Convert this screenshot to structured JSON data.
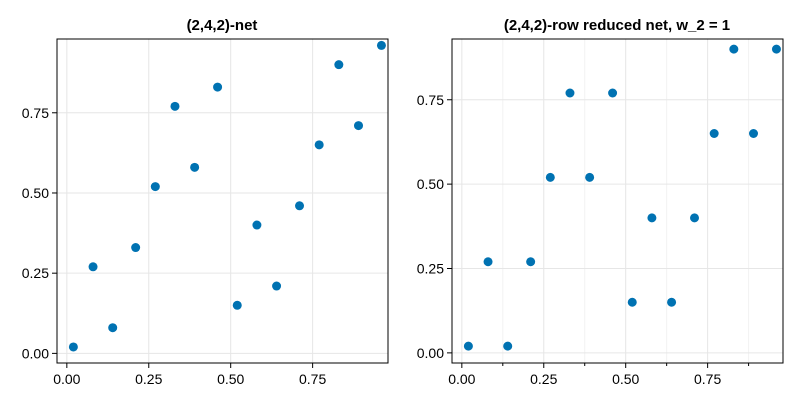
{
  "chart_data": [
    {
      "type": "scatter",
      "title": "(2,4,2)-net",
      "xlabel": "",
      "ylabel": "",
      "xlim": [
        -0.03,
        0.98
      ],
      "ylim": [
        -0.03,
        0.98
      ],
      "xticks": [
        0.0,
        0.25,
        0.5,
        0.75
      ],
      "xtick_labels": [
        "0.00",
        "0.25",
        "0.50",
        "0.75"
      ],
      "yticks": [
        0.0,
        0.25,
        0.5,
        0.75
      ],
      "ytick_labels": [
        "0.00",
        "0.25",
        "0.50",
        "0.75"
      ],
      "minor_xgrid": false,
      "grid": true,
      "marker_color": "#0072b2",
      "points": [
        {
          "x": 0.02,
          "y": 0.02
        },
        {
          "x": 0.08,
          "y": 0.27
        },
        {
          "x": 0.14,
          "y": 0.08
        },
        {
          "x": 0.21,
          "y": 0.33
        },
        {
          "x": 0.27,
          "y": 0.52
        },
        {
          "x": 0.33,
          "y": 0.77
        },
        {
          "x": 0.39,
          "y": 0.58
        },
        {
          "x": 0.46,
          "y": 0.83
        },
        {
          "x": 0.52,
          "y": 0.15
        },
        {
          "x": 0.58,
          "y": 0.4
        },
        {
          "x": 0.64,
          "y": 0.21
        },
        {
          "x": 0.71,
          "y": 0.46
        },
        {
          "x": 0.77,
          "y": 0.65
        },
        {
          "x": 0.83,
          "y": 0.9
        },
        {
          "x": 0.89,
          "y": 0.71
        },
        {
          "x": 0.96,
          "y": 0.96
        }
      ]
    },
    {
      "type": "scatter",
      "title": "(2,4,2)-row reduced net, w_2 = 1",
      "xlabel": "",
      "ylabel": "",
      "xlim": [
        -0.03,
        0.98
      ],
      "ylim": [
        -0.03,
        0.93
      ],
      "xticks": [
        0.0,
        0.25,
        0.5,
        0.75
      ],
      "xtick_labels": [
        "0.00",
        "0.25",
        "0.50",
        "0.75"
      ],
      "yticks": [
        0.0,
        0.25,
        0.5,
        0.75
      ],
      "ytick_labels": [
        "0.00",
        "0.25",
        "0.50",
        "0.75"
      ],
      "minor_xgrid": true,
      "grid": true,
      "marker_color": "#0072b2",
      "points": [
        {
          "x": 0.02,
          "y": 0.02
        },
        {
          "x": 0.08,
          "y": 0.27
        },
        {
          "x": 0.14,
          "y": 0.02
        },
        {
          "x": 0.21,
          "y": 0.27
        },
        {
          "x": 0.27,
          "y": 0.52
        },
        {
          "x": 0.33,
          "y": 0.77
        },
        {
          "x": 0.39,
          "y": 0.52
        },
        {
          "x": 0.46,
          "y": 0.77
        },
        {
          "x": 0.52,
          "y": 0.15
        },
        {
          "x": 0.58,
          "y": 0.4
        },
        {
          "x": 0.64,
          "y": 0.15
        },
        {
          "x": 0.71,
          "y": 0.4
        },
        {
          "x": 0.77,
          "y": 0.65
        },
        {
          "x": 0.83,
          "y": 0.9
        },
        {
          "x": 0.89,
          "y": 0.65
        },
        {
          "x": 0.96,
          "y": 0.9
        }
      ]
    }
  ]
}
